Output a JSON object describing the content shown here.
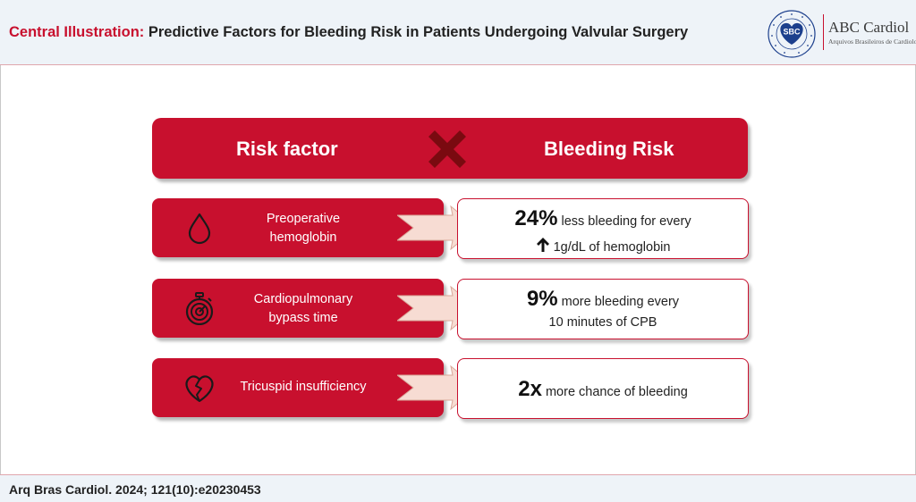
{
  "header": {
    "title_lead": "Central Illustration:",
    "title_rest": " Predictive Factors for Bleeding Risk in Patients Undergoing Valvular Surgery",
    "logo_sbc_text": "SBC",
    "logo_abc_title": "ABC Cardiol",
    "logo_abc_subtitle": "Arquivos Brasileiros de Cardiologia"
  },
  "table_header": {
    "left": "Risk factor",
    "right": "Bleeding Risk"
  },
  "rows": [
    {
      "icon": "blood-drop-icon",
      "factor_line1": "Preoperative",
      "factor_line2": "hemoglobin",
      "result_big": "24%",
      "result_text": " less bleeding for every",
      "result_line2": "1g/dL of hemoglobin"
    },
    {
      "icon": "stopwatch-icon",
      "factor_line1": "Cardiopulmonary",
      "factor_line2": "bypass time",
      "result_big": "9%",
      "result_text": " more bleeding every",
      "result_line2": "10 minutes of CPB"
    },
    {
      "icon": "broken-heart-icon",
      "factor_line1": "Tricuspid insufficiency",
      "result_big": "2x",
      "result_text": " more chance of bleeding"
    }
  ],
  "footer": {
    "citation": "Arq Bras Cardiol. 2024; 121(10):e20230453"
  },
  "colors": {
    "accent_red": "#c8102e",
    "dark_red_x": "#7a0a10",
    "arrow_fill": "#f7dcd3",
    "header_bg": "#eef3f8"
  }
}
